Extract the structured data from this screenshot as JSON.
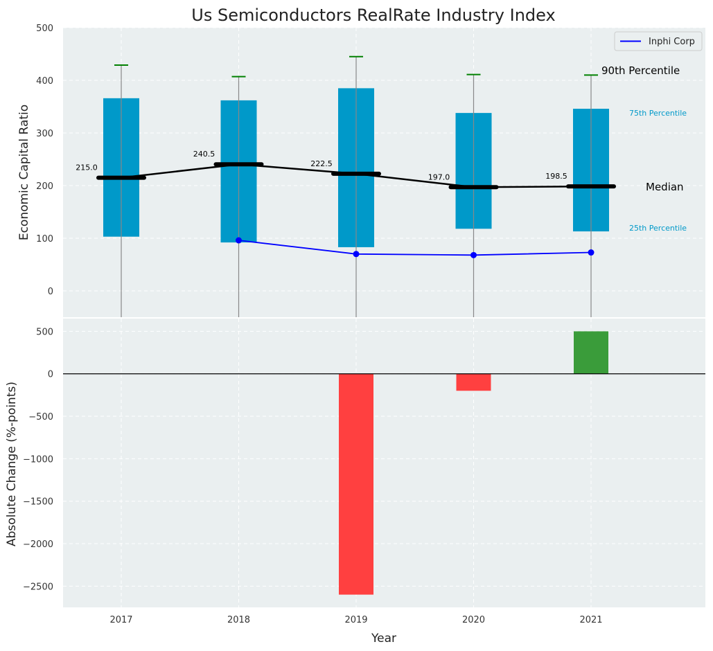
{
  "chart_data": [
    {
      "type": "box",
      "title": "Us Semiconductors RealRate Industry Index",
      "xlabel": "",
      "ylabel": "Economic Capital Ratio",
      "ylim": [
        -50,
        500
      ],
      "yticks": [
        0,
        100,
        200,
        300,
        400,
        500
      ],
      "grid": true,
      "categories": [
        "2017",
        "2018",
        "2019",
        "2020",
        "2021"
      ],
      "p25": [
        103,
        92,
        83,
        118,
        113
      ],
      "p75": [
        366,
        362,
        385,
        338,
        346
      ],
      "p90": [
        429,
        407,
        445,
        411,
        410
      ],
      "median": [
        215.0,
        240.5,
        222.5,
        197.0,
        198.5
      ],
      "median_labels": [
        "215.0",
        "240.5",
        "222.5",
        "197.0",
        "198.5"
      ],
      "series": [
        {
          "name": "Inphi Corp",
          "values": [
            null,
            96,
            70,
            68,
            73
          ],
          "color": "#0000ff"
        }
      ],
      "legend": {
        "position": "top-right"
      },
      "annotations": {
        "p90": "90th Percentile",
        "p75": "75th Percentile",
        "median": "Median",
        "p25": "25th Percentile"
      },
      "colors": {
        "box": "#0099c9",
        "median": "#000000",
        "whisker_cap": "#008000",
        "background": "#eaeff0"
      }
    },
    {
      "type": "bar",
      "xlabel": "Year",
      "ylabel": "Absolute Change (%-points)",
      "ylim": [
        -2750,
        650
      ],
      "yticks": [
        -2500,
        -2000,
        -1500,
        -1000,
        -500,
        0,
        500
      ],
      "grid": true,
      "categories": [
        "2017",
        "2018",
        "2019",
        "2020",
        "2021"
      ],
      "values": [
        null,
        null,
        -2600,
        -200,
        500
      ],
      "colors": {
        "negative": "#ff4040",
        "positive": "#3a9c3a"
      }
    }
  ]
}
